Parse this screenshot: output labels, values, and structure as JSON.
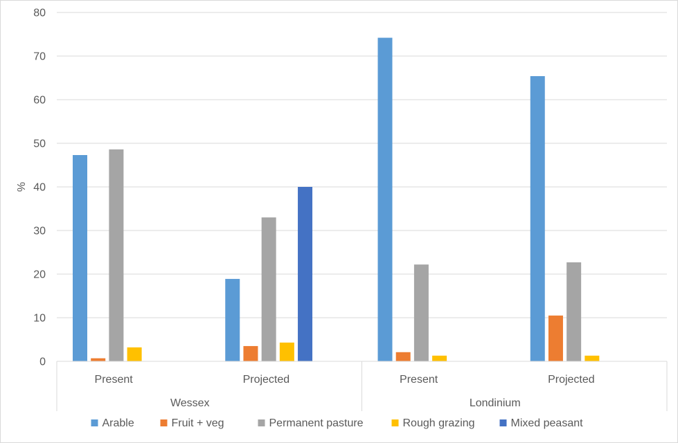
{
  "chart_data": {
    "type": "bar",
    "title": "",
    "ylabel": "%",
    "xlabel": "",
    "ylim": [
      0,
      80
    ],
    "yticks": [
      0,
      10,
      20,
      30,
      40,
      50,
      60,
      70,
      80
    ],
    "grid": true,
    "legend_position": "bottom",
    "groups": [
      {
        "label": "Wessex",
        "categories": [
          "Present",
          "Projected"
        ]
      },
      {
        "label": "Londinium",
        "categories": [
          "Present",
          "Projected"
        ]
      }
    ],
    "categories": [
      "Present",
      "Projected",
      "Present",
      "Projected"
    ],
    "series": [
      {
        "name": "Arable",
        "color": "#5B9BD5",
        "values": [
          47.3,
          18.9,
          74.2,
          65.4
        ]
      },
      {
        "name": "Fruit + veg",
        "color": "#ED7D31",
        "values": [
          0.7,
          3.5,
          2.1,
          10.5
        ]
      },
      {
        "name": "Permanent pasture",
        "color": "#A5A5A5",
        "values": [
          48.6,
          33.0,
          22.2,
          22.7
        ]
      },
      {
        "name": "Rough grazing",
        "color": "#FFC000",
        "values": [
          3.2,
          4.3,
          1.3,
          1.3
        ]
      },
      {
        "name": "Mixed peasant",
        "color": "#4472C4",
        "values": [
          0,
          40.0,
          0,
          0
        ]
      }
    ]
  }
}
